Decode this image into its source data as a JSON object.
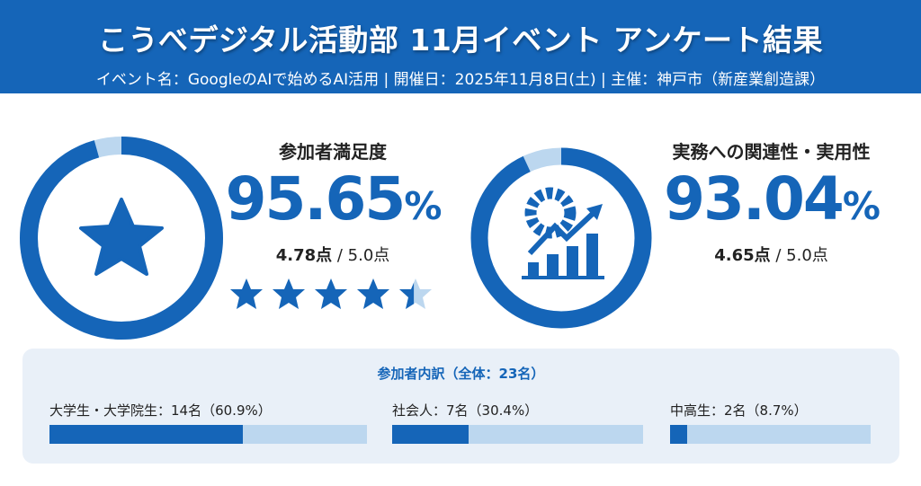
{
  "header": {
    "title": "こうべデジタル活動部 11月イベント アンケート結果",
    "subtitle": "イベント名：GoogleのAIで始めるAI活用 | 開催日：2025年11月8日(土) | 主催：神戸市（新産業創造課）"
  },
  "colors": {
    "primary": "#1565b8",
    "light": "#bcd7ef"
  },
  "chart_data": {
    "type": "donut",
    "metrics": [
      {
        "title": "参加者満足度",
        "percent": 95.65,
        "percent_text": "95.65",
        "pct_sign": "%",
        "score_text": "4.78点",
        "max_text": " / 5.0点",
        "score": 4.78,
        "max": 5.0,
        "icon": "star-icon",
        "rating_stars": 4.78
      },
      {
        "title": "実務への関連性・実用性",
        "percent": 93.04,
        "percent_text": "93.04",
        "pct_sign": "%",
        "score_text": "4.65点",
        "max_text": " / 5.0点",
        "score": 4.65,
        "max": 5.0,
        "icon": "gear-chart-icon"
      }
    ],
    "breakdown": {
      "title": "参加者内訳（全体：23名）",
      "total": 23,
      "groups": [
        {
          "label": "大学生・大学院生：14名（60.9%）",
          "count": 14,
          "percent": 60.9
        },
        {
          "label": "社会人：7名（30.4%）",
          "count": 7,
          "percent": 30.4
        },
        {
          "label": "中高生：2名（8.7%）",
          "count": 2,
          "percent": 8.7
        }
      ]
    }
  }
}
